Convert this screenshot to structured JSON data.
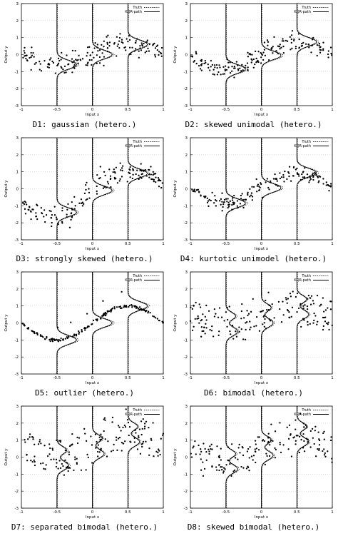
{
  "chart_data": [
    {
      "type": "scatter",
      "caption": "D1: gaussian (hetero.)",
      "xlabel": "Input x",
      "ylabel": "Output y",
      "xlim": [
        -1,
        1
      ],
      "ylim": [
        -3,
        3
      ],
      "xticks": [
        -1,
        -0.5,
        0,
        0.5,
        1
      ],
      "xtick_labels": [
        "-1",
        "-0.5",
        "0",
        "0.5",
        "1"
      ],
      "yticks": [
        -3,
        -2,
        -1,
        0,
        1,
        2,
        3
      ],
      "grid": true,
      "legend_position": "top-right",
      "legend": [
        "Truth",
        "KQR-path"
      ],
      "mean_curve": "gaussian",
      "noise": 0.5,
      "seed": 11
    },
    {
      "type": "scatter",
      "caption": "D2: skewed unimodal (hetero.)",
      "xlabel": "Input x",
      "ylabel": "Output y",
      "xlim": [
        -1,
        1
      ],
      "ylim": [
        -3,
        3
      ],
      "xticks": [
        -1,
        -0.5,
        0,
        0.5,
        1
      ],
      "xtick_labels": [
        "-1",
        "-0.5",
        "0",
        "0.5",
        "1"
      ],
      "yticks": [
        -3,
        -2,
        -1,
        0,
        1,
        2,
        3
      ],
      "grid": true,
      "legend_position": "top-right",
      "legend": [
        "Truth",
        "KQR-path"
      ],
      "mean_curve": "skewed",
      "noise": 0.45,
      "seed": 23
    },
    {
      "type": "scatter",
      "caption": "D3: strongly skewed (hetero.)",
      "xlabel": "Input x",
      "ylabel": "Output y",
      "xlim": [
        -1,
        1
      ],
      "ylim": [
        -3,
        3
      ],
      "xticks": [
        -1,
        -0.5,
        0,
        0.5,
        1
      ],
      "xtick_labels": [
        "-1",
        "-0.5",
        "0",
        "0.5",
        "1"
      ],
      "yticks": [
        -3,
        -2,
        -1,
        0,
        1,
        2,
        3
      ],
      "grid": true,
      "legend_position": "top-right",
      "legend": [
        "Truth",
        "KQR-path"
      ],
      "mean_curve": "strong",
      "noise": 0.45,
      "seed": 37
    },
    {
      "type": "scatter",
      "caption": "D4: kurtotic unimodel (hetero.)",
      "xlabel": "Input x",
      "ylabel": "Output y",
      "xlim": [
        -1,
        1
      ],
      "ylim": [
        -3,
        3
      ],
      "xticks": [
        -1,
        -0.5,
        0,
        0.5,
        1
      ],
      "xtick_labels": [
        "-1",
        "-0.5",
        "0",
        "0.5",
        "1"
      ],
      "yticks": [
        -3,
        -2,
        -1,
        0,
        1,
        2,
        3
      ],
      "grid": true,
      "legend_position": "top-right",
      "legend": [
        "Truth",
        "KQR-path"
      ],
      "mean_curve": "kurtotic",
      "noise": 0.35,
      "seed": 41
    },
    {
      "type": "scatter",
      "caption": "D5: outlier (hetero.)",
      "xlabel": "Input x",
      "ylabel": "Output y",
      "xlim": [
        -1,
        1
      ],
      "ylim": [
        -3,
        3
      ],
      "xticks": [
        -1,
        -0.5,
        0,
        0.5,
        1
      ],
      "xtick_labels": [
        "-1",
        "-0.5",
        "0",
        "0.5",
        "1"
      ],
      "yticks": [
        -3,
        -2,
        -1,
        0,
        1,
        2,
        3
      ],
      "grid": true,
      "legend_position": "top-right",
      "legend": [
        "Truth",
        "KQR-path"
      ],
      "mean_curve": "outlier",
      "noise": 0.08,
      "seed": 53
    },
    {
      "type": "scatter",
      "caption": "D6: bimodal (hetero.)",
      "xlabel": "Input x",
      "ylabel": "Output y",
      "xlim": [
        -1,
        1
      ],
      "ylim": [
        -3,
        3
      ],
      "xticks": [
        -1,
        -0.5,
        0,
        0.5,
        1
      ],
      "xtick_labels": [
        "-1",
        "-0.5",
        "0",
        "0.5",
        "1"
      ],
      "yticks": [
        -3,
        -2,
        -1,
        0,
        1,
        2,
        3
      ],
      "grid": true,
      "legend_position": "top-right",
      "legend": [
        "Truth",
        "KQR-path"
      ],
      "mean_curve": "bimodal",
      "noise": 0.55,
      "seed": 67
    },
    {
      "type": "scatter",
      "caption": "D7: separated bimodal (hetero.)",
      "xlabel": "Input x",
      "ylabel": "Output y",
      "xlim": [
        -1,
        1
      ],
      "ylim": [
        -3,
        3
      ],
      "xticks": [
        -1,
        -0.5,
        0,
        0.5,
        1
      ],
      "xtick_labels": [
        "-1",
        "-0.5",
        "0",
        "0.5",
        "1"
      ],
      "yticks": [
        -3,
        -2,
        -1,
        0,
        1,
        2,
        3
      ],
      "grid": true,
      "legend_position": "top-right",
      "legend": [
        "Truth",
        "KQR-path"
      ],
      "mean_curve": "separated",
      "noise": 0.5,
      "seed": 79
    },
    {
      "type": "scatter",
      "caption": "D8: skewed bimodal (hetero.)",
      "xlabel": "Input x",
      "ylabel": "Output y",
      "xlim": [
        -1,
        1
      ],
      "ylim": [
        -3,
        3
      ],
      "xticks": [
        -1,
        -0.5,
        0,
        0.5,
        1
      ],
      "xtick_labels": [
        "-1",
        "-0.5",
        "0",
        "0.5",
        "1"
      ],
      "yticks": [
        -3,
        -2,
        -1,
        0,
        1,
        2,
        3
      ],
      "grid": true,
      "legend_position": "top-right",
      "legend": [
        "Truth",
        "KQR-path"
      ],
      "mean_curve": "skewbimodal",
      "noise": 0.55,
      "seed": 83
    }
  ]
}
